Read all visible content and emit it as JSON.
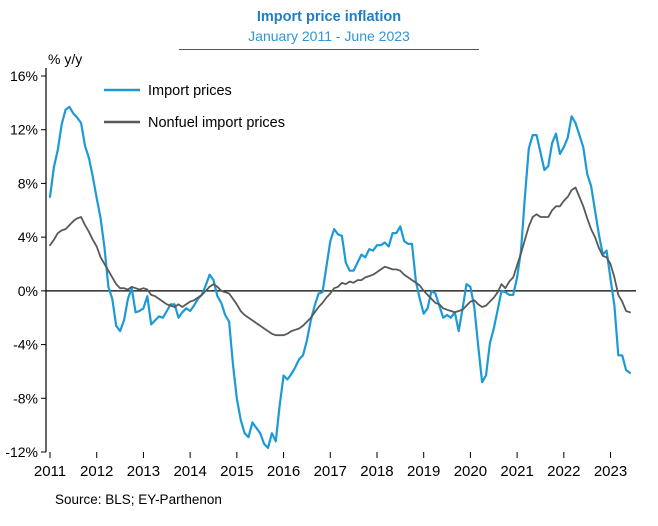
{
  "header": {
    "title": "Import price inflation",
    "subtitle": "January 2011 - June 2023"
  },
  "footer": {
    "source": "Source: BLS; EY-Parthenon"
  },
  "colors": {
    "title_blue": "#1f7ec2",
    "subtitle_blue": "#2e96d2",
    "import_line": "#1c9ad6",
    "nonfuel_line": "#595959",
    "axis": "#000000"
  },
  "chart_data": {
    "type": "line",
    "title": "Import price inflation",
    "subtitle": "January 2011 - June 2023",
    "unit_label": "% y/y",
    "frequency": "monthly",
    "x_tick_labels": [
      "2011",
      "2012",
      "2013",
      "2014",
      "2015",
      "2016",
      "2017",
      "2018",
      "2019",
      "2020",
      "2021",
      "2022",
      "2023"
    ],
    "y_ticks": [
      16,
      12,
      8,
      4,
      0,
      -4,
      -8,
      -12
    ],
    "y_tick_suffix": "%",
    "ylim": [
      -12,
      16
    ],
    "grid": false,
    "legend_position": "top-left-inside",
    "series": [
      {
        "name": "Import prices",
        "color": "#1c9ad6",
        "values": [
          7.0,
          9.2,
          10.5,
          12.4,
          13.5,
          13.7,
          13.2,
          12.9,
          12.5,
          10.8,
          9.9,
          8.5,
          6.9,
          5.4,
          3.2,
          0.3,
          -0.6,
          -2.6,
          -3.0,
          -2.2,
          -0.6,
          0.2,
          -1.6,
          -1.5,
          -1.3,
          -0.4,
          -2.5,
          -2.2,
          -1.9,
          -2.0,
          -1.5,
          -1.0,
          -1.0,
          -2.0,
          -1.6,
          -1.3,
          -1.5,
          -1.1,
          -0.6,
          -0.3,
          0.4,
          1.2,
          0.8,
          -0.4,
          -0.9,
          -1.8,
          -2.3,
          -5.5,
          -8.0,
          -9.6,
          -10.6,
          -10.9,
          -9.8,
          -10.2,
          -10.6,
          -11.4,
          -11.7,
          -10.6,
          -11.2,
          -8.5,
          -6.3,
          -6.6,
          -6.2,
          -5.7,
          -5.1,
          -4.8,
          -3.7,
          -2.2,
          -1.1,
          -0.2,
          -0.1,
          1.8,
          3.7,
          4.6,
          4.2,
          4.1,
          2.1,
          1.5,
          1.5,
          2.1,
          2.7,
          2.5,
          3.1,
          3.0,
          3.4,
          3.4,
          3.6,
          3.3,
          4.3,
          4.3,
          4.8,
          3.7,
          3.5,
          3.5,
          0.7,
          -0.6,
          -1.7,
          -1.3,
          0.0,
          -0.2,
          -1.1,
          -2.0,
          -1.8,
          -2.0,
          -1.6,
          -3.0,
          -1.3,
          0.5,
          0.3,
          -1.2,
          -4.1,
          -6.8,
          -6.3,
          -3.9,
          -2.8,
          -1.4,
          0.0,
          -0.1,
          -0.3,
          -0.3,
          1.0,
          3.0,
          7.0,
          10.6,
          11.6,
          11.6,
          10.3,
          9.0,
          9.3,
          11.0,
          11.7,
          10.2,
          10.7,
          11.4,
          13.0,
          12.5,
          11.6,
          10.7,
          8.7,
          7.8,
          6.0,
          4.2,
          2.7,
          3.0,
          0.9,
          -1.1,
          -4.8,
          -4.8,
          -5.9,
          -6.1
        ]
      },
      {
        "name": "Nonfuel import prices",
        "color": "#595959",
        "values": [
          3.4,
          3.8,
          4.3,
          4.5,
          4.6,
          4.9,
          5.2,
          5.4,
          5.5,
          4.9,
          4.4,
          3.8,
          3.3,
          2.5,
          2.0,
          1.5,
          1.0,
          0.5,
          0.2,
          0.2,
          0.1,
          0.3,
          0.2,
          0.1,
          0.2,
          0.1,
          -0.3,
          -0.4,
          -0.6,
          -0.8,
          -1.0,
          -1.1,
          -1.2,
          -1.0,
          -1.2,
          -1.0,
          -0.8,
          -0.7,
          -0.5,
          -0.3,
          0.0,
          0.3,
          0.5,
          0.3,
          0.0,
          -0.1,
          -0.2,
          -0.6,
          -1.0,
          -1.5,
          -1.8,
          -2.0,
          -2.2,
          -2.4,
          -2.6,
          -2.8,
          -3.0,
          -3.2,
          -3.3,
          -3.3,
          -3.3,
          -3.2,
          -3.0,
          -2.9,
          -2.8,
          -2.6,
          -2.3,
          -2.0,
          -1.6,
          -1.2,
          -0.9,
          -0.5,
          -0.2,
          0.2,
          0.3,
          0.6,
          0.5,
          0.7,
          0.6,
          0.8,
          0.8,
          1.0,
          1.1,
          1.2,
          1.4,
          1.6,
          1.8,
          1.7,
          1.6,
          1.6,
          1.5,
          1.2,
          1.0,
          0.8,
          0.6,
          0.4,
          0.0,
          -0.3,
          -0.6,
          -0.9,
          -1.0,
          -1.3,
          -1.4,
          -1.5,
          -1.6,
          -1.5,
          -1.4,
          -1.1,
          -0.8,
          -0.7,
          -1.0,
          -1.2,
          -1.1,
          -0.8,
          -0.5,
          -0.1,
          0.5,
          0.2,
          0.7,
          1.0,
          1.9,
          2.8,
          3.8,
          4.8,
          5.5,
          5.7,
          5.5,
          5.5,
          5.5,
          6.0,
          6.3,
          6.3,
          6.7,
          7.0,
          7.5,
          7.7,
          7.0,
          6.3,
          5.4,
          4.6,
          4.0,
          3.2,
          2.6,
          2.5,
          2.0,
          1.0,
          -0.3,
          -0.8,
          -1.5,
          -1.6
        ]
      }
    ]
  }
}
